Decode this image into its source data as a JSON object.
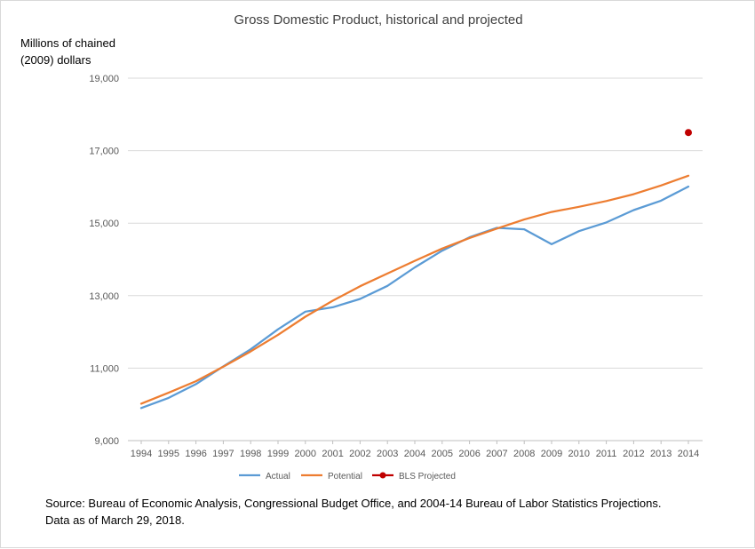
{
  "chart_data": {
    "type": "line",
    "title": "Gross Domestic Product, historical and projected",
    "ylabel": [
      "Millions of chained",
      "(2009) dollars"
    ],
    "xlabel": "",
    "ylim": [
      9000,
      19000
    ],
    "yticks": [
      9000,
      11000,
      13000,
      15000,
      17000,
      19000
    ],
    "ytick_labels": [
      "9,000",
      "11,000",
      "13,000",
      "15,000",
      "17,000",
      "19,000"
    ],
    "grid": true,
    "legend_position": "bottom",
    "categories": [
      "1994",
      "1995",
      "1996",
      "1997",
      "1998",
      "1999",
      "2000",
      "2001",
      "2002",
      "2003",
      "2004",
      "2005",
      "2006",
      "2007",
      "2008",
      "2009",
      "2010",
      "2011",
      "2012",
      "2013",
      "2014"
    ],
    "series": [
      {
        "name": "Actual",
        "color": "#5B9BD5",
        "kind": "line",
        "values": [
          9900,
          10180,
          10560,
          11050,
          11520,
          12070,
          12560,
          12680,
          12910,
          13270,
          13780,
          14240,
          14610,
          14870,
          14830,
          14420,
          14780,
          15020,
          15360,
          15620,
          16010
        ]
      },
      {
        "name": "Potential",
        "color": "#ED7D31",
        "kind": "line",
        "values": [
          10020,
          10320,
          10640,
          11040,
          11460,
          11920,
          12420,
          12860,
          13260,
          13610,
          13960,
          14300,
          14590,
          14850,
          15100,
          15310,
          15450,
          15610,
          15800,
          16040,
          16310
        ]
      },
      {
        "name": "BLS Projected",
        "color": "#C00000",
        "kind": "marker",
        "points": [
          {
            "x": "2014",
            "y": 17500
          }
        ]
      }
    ]
  },
  "notes": {
    "source_line1": "Source: Bureau of Economic Analysis, Congressional Budget Office, and 2004-14 Bureau of Labor Statistics Projections.",
    "source_line2": "Data as of March 29, 2018."
  }
}
